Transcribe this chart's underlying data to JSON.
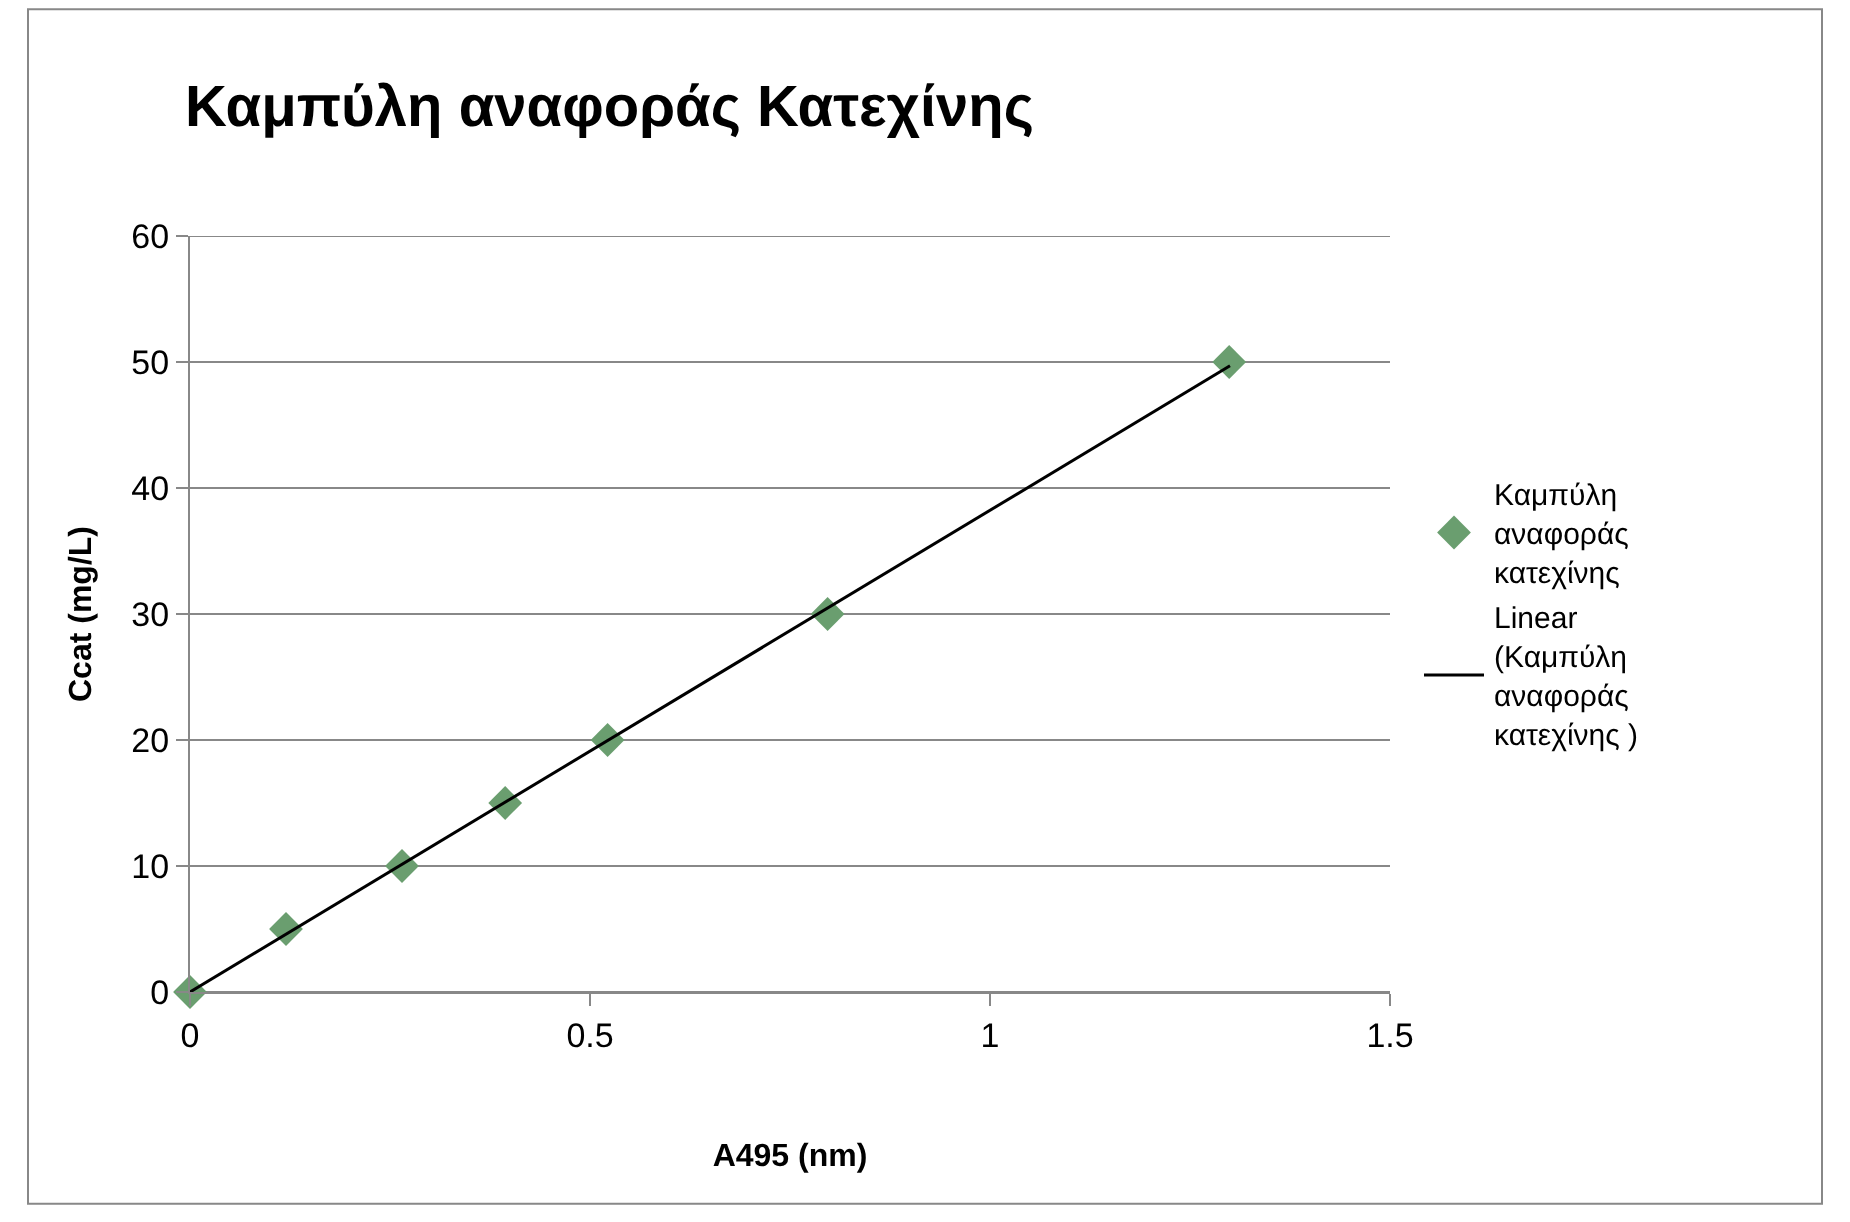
{
  "chart_data": {
    "type": "scatter",
    "title": "Καμπύλη αναφοράς Κατεχίνης",
    "xlabel": "A495 (nm)",
    "ylabel": "Ccat (mg/L)",
    "series": [
      {
        "name": "Καμπύλη αναφοράς κατεχίνης",
        "color": "#6a9e6f",
        "marker": "diamond",
        "x": [
          0,
          0.12,
          0.265,
          0.394,
          0.522,
          0.797,
          1.299
        ],
        "values": [
          0,
          5,
          10,
          15,
          20,
          30,
          50
        ]
      },
      {
        "name": "Linear (Καμπύλη αναφοράς κατεχίνης )",
        "type": "line",
        "color": "#000000",
        "marker": "none",
        "line_style": "solid",
        "x": [
          0,
          1.3
        ],
        "values": [
          0,
          49.7
        ]
      }
    ],
    "xlim": [
      0,
      1.5
    ],
    "xticks": [
      0,
      0.5,
      1,
      1.5
    ],
    "ylim": [
      0,
      60
    ],
    "yticks": [
      0,
      10,
      20,
      30,
      40,
      50,
      60
    ],
    "grid": "y",
    "legend": "right"
  }
}
